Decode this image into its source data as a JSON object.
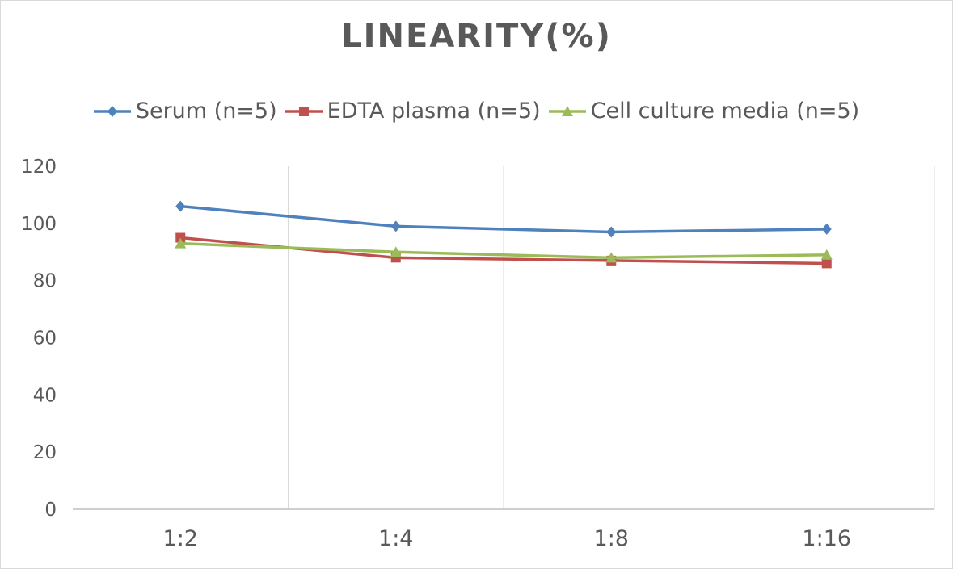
{
  "chart_data": {
    "type": "line",
    "title": "LINEARITY(%)",
    "categories": [
      "1:2",
      "1:4",
      "1:8",
      "1:16"
    ],
    "series": [
      {
        "name": "Serum (n=5)",
        "values": [
          106,
          99,
          97,
          98
        ],
        "color": "#4f81bd",
        "marker": "diamond"
      },
      {
        "name": "EDTA plasma (n=5)",
        "values": [
          95,
          88,
          87,
          86
        ],
        "color": "#c0504d",
        "marker": "square"
      },
      {
        "name": "Cell culture media (n=5)",
        "values": [
          93,
          90,
          88,
          89
        ],
        "color": "#9bbb59",
        "marker": "triangle"
      }
    ],
    "ylim": [
      0,
      120
    ],
    "yticks": [
      0,
      20,
      40,
      60,
      80,
      100,
      120
    ],
    "xlabel": "",
    "ylabel": "",
    "grid": "vertical",
    "legend": "top"
  }
}
